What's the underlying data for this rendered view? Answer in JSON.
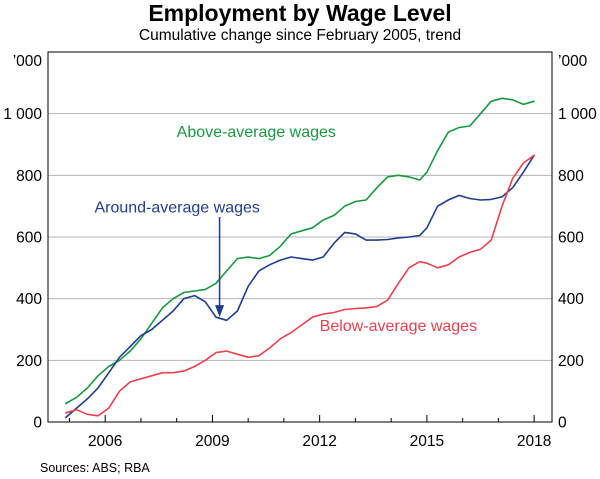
{
  "title": "Employment by Wage Level",
  "subtitle": "Cumulative change since February 2005, trend",
  "source": "Sources: ABS; RBA",
  "chart_data": {
    "type": "line",
    "title": "Employment by Wage Level",
    "subtitle": "Cumulative change since February 2005, trend",
    "xlabel": "",
    "ylabel": "'000",
    "unit_left": "’000",
    "unit_right": "’000",
    "xlim": [
      2004.4,
      2018.5
    ],
    "ylim": [
      0,
      1200
    ],
    "grid": true,
    "x_ticks": [
      2006,
      2009,
      2012,
      2015,
      2018
    ],
    "x_tick_labels": [
      "2006",
      "2009",
      "2012",
      "2015",
      "2018"
    ],
    "y_ticks": [
      0,
      200,
      400,
      600,
      800,
      1000
    ],
    "y_tick_labels": [
      "0",
      "200",
      "400",
      "600",
      "800",
      "1 000"
    ],
    "series": [
      {
        "name": "Above-average wages",
        "color": "#1a9641",
        "label_pos": [
          2008.0,
          925
        ],
        "label_anchor": "start",
        "x": [
          2004.9,
          2005.2,
          2005.5,
          2005.8,
          2006.1,
          2006.4,
          2006.7,
          2007.0,
          2007.3,
          2007.6,
          2007.9,
          2008.2,
          2008.5,
          2008.8,
          2009.1,
          2009.4,
          2009.7,
          2010.0,
          2010.3,
          2010.6,
          2010.9,
          2011.2,
          2011.5,
          2011.8,
          2012.1,
          2012.4,
          2012.7,
          2013.0,
          2013.3,
          2013.6,
          2013.9,
          2014.2,
          2014.5,
          2014.8,
          2015.0,
          2015.3,
          2015.6,
          2015.9,
          2016.2,
          2016.5,
          2016.8,
          2017.1,
          2017.4,
          2017.7,
          2018.0
        ],
        "values": [
          60,
          80,
          110,
          150,
          180,
          200,
          230,
          270,
          320,
          370,
          400,
          420,
          425,
          430,
          450,
          490,
          530,
          535,
          530,
          540,
          570,
          610,
          620,
          630,
          655,
          670,
          700,
          715,
          720,
          760,
          795,
          800,
          795,
          785,
          810,
          880,
          940,
          955,
          960,
          1000,
          1040,
          1050,
          1045,
          1030,
          1040
        ]
      },
      {
        "name": "Around-average wages",
        "color": "#1f3d8c",
        "label_pos": [
          2005.7,
          680
        ],
        "label_anchor": "start",
        "x": [
          2004.9,
          2005.2,
          2005.5,
          2005.8,
          2006.1,
          2006.4,
          2006.7,
          2007.0,
          2007.3,
          2007.6,
          2007.9,
          2008.2,
          2008.5,
          2008.8,
          2009.1,
          2009.4,
          2009.7,
          2010.0,
          2010.3,
          2010.6,
          2010.9,
          2011.2,
          2011.5,
          2011.8,
          2012.1,
          2012.4,
          2012.7,
          2013.0,
          2013.3,
          2013.6,
          2013.9,
          2014.2,
          2014.5,
          2014.8,
          2015.0,
          2015.3,
          2015.6,
          2015.9,
          2016.2,
          2016.5,
          2016.8,
          2017.1,
          2017.4,
          2017.7,
          2018.0
        ],
        "values": [
          15,
          45,
          75,
          110,
          160,
          210,
          245,
          280,
          300,
          330,
          360,
          400,
          410,
          390,
          340,
          330,
          360,
          440,
          490,
          510,
          525,
          535,
          530,
          525,
          535,
          580,
          615,
          610,
          590,
          590,
          592,
          597,
          600,
          605,
          630,
          700,
          720,
          735,
          725,
          720,
          722,
          730,
          760,
          810,
          865
        ]
      },
      {
        "name": "Below-average wages",
        "color": "#e8404f",
        "label_pos": [
          2012.0,
          295
        ],
        "label_anchor": "start",
        "x": [
          2004.9,
          2005.2,
          2005.5,
          2005.8,
          2006.1,
          2006.4,
          2006.7,
          2007.0,
          2007.3,
          2007.6,
          2007.9,
          2008.2,
          2008.5,
          2008.8,
          2009.1,
          2009.4,
          2009.7,
          2010.0,
          2010.3,
          2010.6,
          2010.9,
          2011.2,
          2011.5,
          2011.8,
          2012.1,
          2012.4,
          2012.7,
          2013.0,
          2013.3,
          2013.6,
          2013.9,
          2014.2,
          2014.5,
          2014.8,
          2015.0,
          2015.3,
          2015.6,
          2015.9,
          2016.2,
          2016.5,
          2016.8,
          2017.1,
          2017.4,
          2017.7,
          2018.0
        ],
        "values": [
          30,
          40,
          25,
          20,
          45,
          100,
          130,
          140,
          150,
          160,
          160,
          165,
          180,
          200,
          225,
          230,
          220,
          210,
          215,
          240,
          270,
          290,
          315,
          340,
          350,
          355,
          365,
          368,
          370,
          375,
          395,
          450,
          500,
          520,
          515,
          500,
          510,
          535,
          550,
          560,
          590,
          700,
          790,
          840,
          865
        ]
      }
    ],
    "annotations": [
      {
        "type": "arrow",
        "label": "Around-average wages",
        "from": [
          2009.2,
          665
        ],
        "to": [
          2009.2,
          340
        ],
        "color": "#1f3d8c"
      }
    ]
  }
}
